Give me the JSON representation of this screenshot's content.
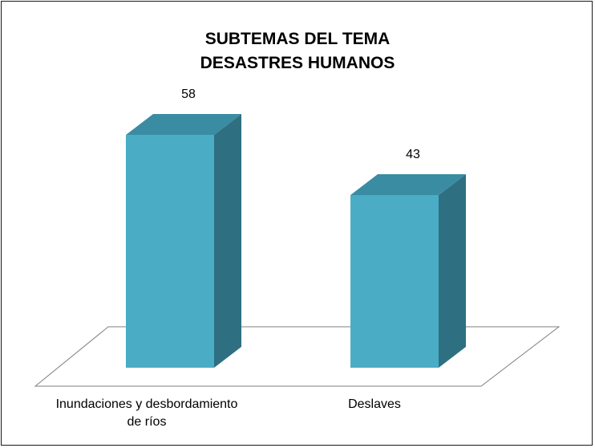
{
  "chart_data": {
    "type": "bar",
    "title_lines": [
      "SUBTEMAS DEL TEMA",
      "DESASTRES HUMANOS"
    ],
    "categories": [
      [
        "Inundaciones y desbordamiento",
        "de ríos"
      ],
      [
        "Deslaves"
      ]
    ],
    "values": [
      58,
      43
    ],
    "data_labels": [
      "58",
      "43"
    ],
    "ylim": [
      0,
      70
    ],
    "grid": false,
    "legend": "none",
    "bar_style": "3d-column",
    "colors": {
      "bar_front": "#4BACC6",
      "bar_top": "#3A8CA3",
      "bar_side": "#2F6F82",
      "floor_stroke": "#7f7f7f"
    }
  }
}
